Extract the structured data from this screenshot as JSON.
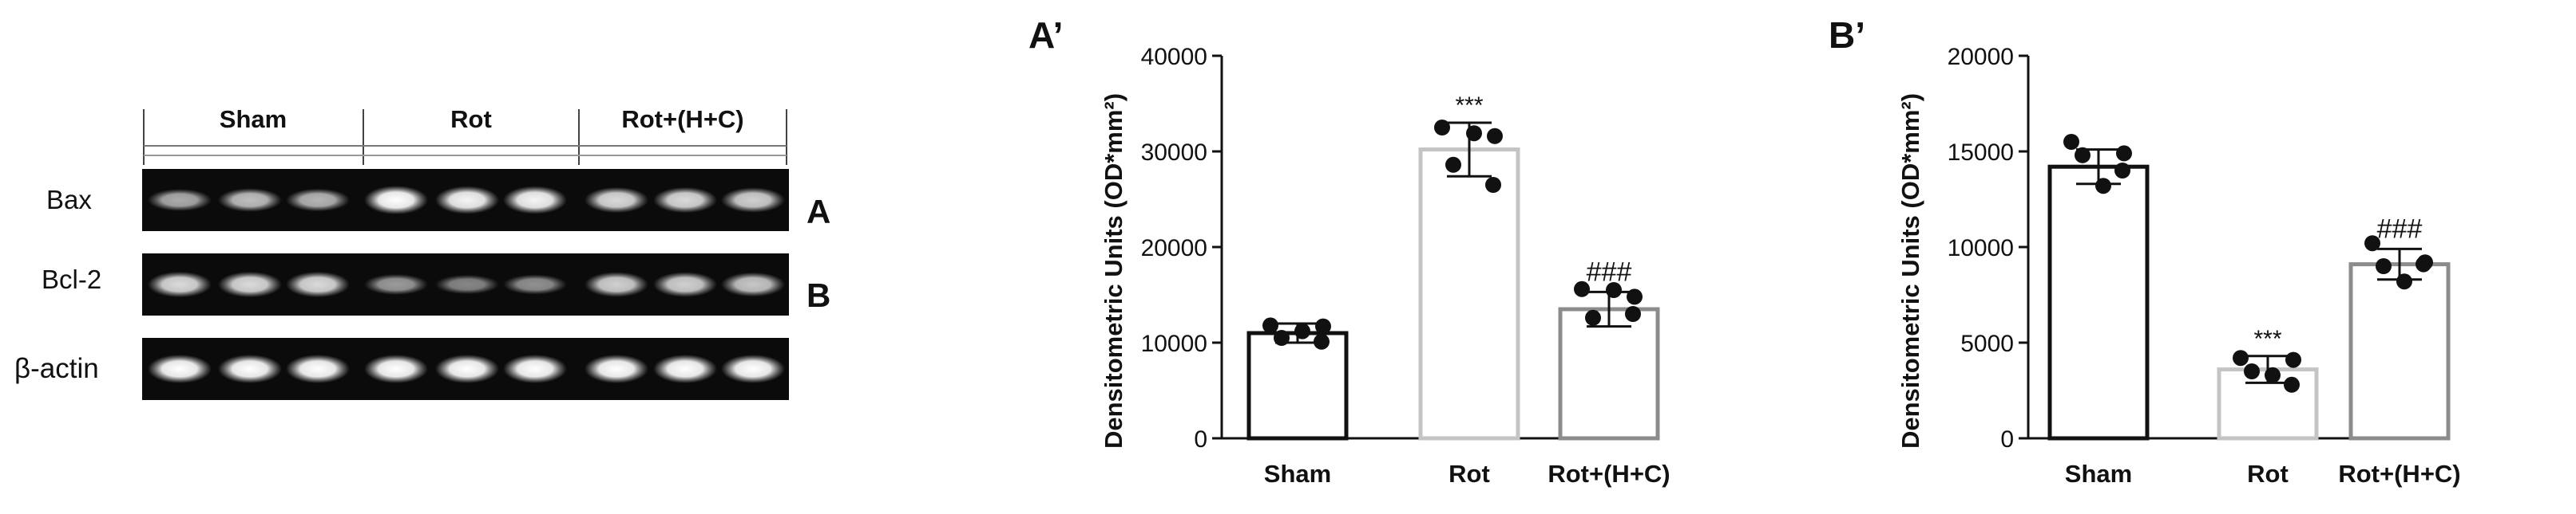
{
  "blot": {
    "groups": [
      "Sham",
      "Rot",
      "Rot+(H+C)"
    ],
    "rows": [
      {
        "label": "Bax",
        "panel": "A",
        "intensities": [
          0.55,
          0.65,
          0.6,
          1.0,
          0.95,
          0.95,
          0.8,
          0.8,
          0.75
        ]
      },
      {
        "label": "Bcl-2",
        "panel": "B",
        "intensities": [
          0.8,
          0.8,
          0.8,
          0.45,
          0.35,
          0.4,
          0.75,
          0.75,
          0.7
        ]
      },
      {
        "label": "β-actin",
        "panel": "",
        "intensities": [
          1.0,
          1.0,
          1.0,
          1.0,
          1.0,
          1.0,
          1.0,
          1.0,
          1.0
        ]
      }
    ]
  },
  "chart_data": [
    {
      "type": "bar",
      "panel_label": "A’",
      "categories": [
        "Sham",
        "Rot",
        "Rot+(H+C)"
      ],
      "values": [
        11000,
        30200,
        13500
      ],
      "errors": [
        1000,
        2800,
        1800
      ],
      "points": [
        [
          11800,
          11700,
          10500,
          10100,
          11200
        ],
        [
          32500,
          31600,
          28600,
          26500,
          31900
        ],
        [
          15600,
          14800,
          12600,
          13000,
          15500
        ]
      ],
      "annotations": [
        "",
        "***",
        "###"
      ],
      "bar_colors": [
        "#111111",
        "#c4c4c4",
        "#8c8c8c"
      ],
      "ylabel": "Densitometric Units (OD*mm²)",
      "yticks": [
        "0",
        "10000",
        "20000",
        "30000",
        "40000"
      ],
      "ylim": [
        0,
        40000
      ]
    },
    {
      "type": "bar",
      "panel_label": "B’",
      "categories": [
        "Sham",
        "Rot",
        "Rot+(H+C)"
      ],
      "values": [
        14200,
        3600,
        9100
      ],
      "errors": [
        900,
        700,
        800
      ],
      "points": [
        [
          15500,
          14900,
          14800,
          14000,
          13200
        ],
        [
          4200,
          4100,
          3500,
          2800,
          3300
        ],
        [
          10200,
          9200,
          9000,
          9100,
          8200
        ]
      ],
      "annotations": [
        "",
        "***",
        "###"
      ],
      "bar_colors": [
        "#111111",
        "#c4c4c4",
        "#8c8c8c"
      ],
      "ylabel": "Densitometric Units (OD*mm²)",
      "yticks": [
        "0",
        "5000",
        "10000",
        "15000",
        "20000"
      ],
      "ylim": [
        0,
        20000
      ]
    }
  ]
}
